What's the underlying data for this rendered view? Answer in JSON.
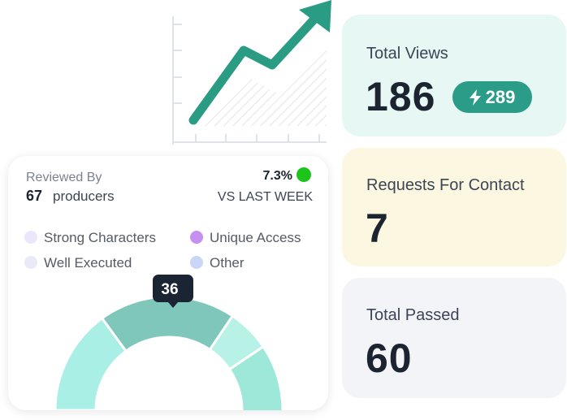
{
  "stats": [
    {
      "label": "Total Views",
      "value": 186,
      "badge": 289
    },
    {
      "label": "Requests For Contact",
      "value": 7
    },
    {
      "label": "Total Passed",
      "value": 60
    }
  ],
  "review": {
    "label": "Reviewed By",
    "count": 67,
    "count_unit": "producers",
    "change": "7.3%",
    "change_label": "VS LAST WEEK",
    "legend": [
      "Strong Characters",
      "Unique Access",
      "Well Executed",
      "Other"
    ],
    "tooltip": 36
  }
}
